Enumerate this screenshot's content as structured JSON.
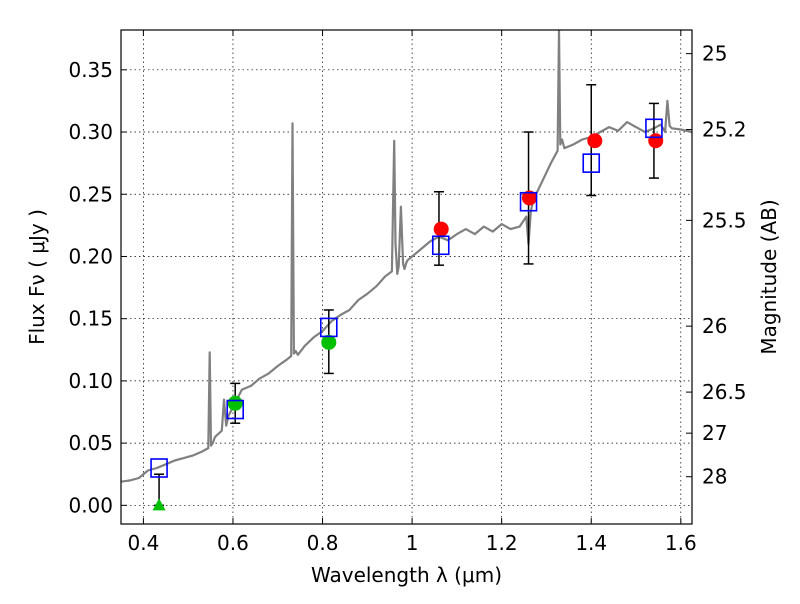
{
  "chart_data": {
    "type": "scatter",
    "xlabel": "Wavelength  λ (μm)",
    "ylabel": "Flux  Fν  ( μJy )",
    "y2label": "Magnitude (AB)",
    "xlim": [
      0.35,
      1.625
    ],
    "ylim": [
      -0.015,
      0.382
    ],
    "grid": true,
    "x_ticks": [
      0.4,
      0.6,
      0.8,
      1.0,
      1.2,
      1.4,
      1.6
    ],
    "x_tick_labels": [
      "0.4",
      "0.6",
      "0.8",
      "1",
      "1.2",
      "1.4",
      "1.6"
    ],
    "y_ticks": [
      0.0,
      0.05,
      0.1,
      0.15,
      0.2,
      0.25,
      0.3,
      0.35
    ],
    "y_tick_labels": [
      "0.00",
      "0.05",
      "0.10",
      "0.15",
      "0.20",
      "0.25",
      "0.30",
      "0.35"
    ],
    "mag_ticks": [
      {
        "label": "25",
        "flux": 0.363
      },
      {
        "label": "25.2",
        "flux": 0.302
      },
      {
        "label": "25.5",
        "flux": 0.229
      },
      {
        "label": "26",
        "flux": 0.144
      },
      {
        "label": "26.5",
        "flux": 0.091
      },
      {
        "label": "27",
        "flux": 0.058
      },
      {
        "label": "28",
        "flux": 0.023
      }
    ],
    "series": [
      {
        "type": "line",
        "color": "#808080",
        "x": [
          0.35,
          0.37,
          0.39,
          0.41,
          0.43,
          0.45,
          0.47,
          0.49,
          0.51,
          0.53,
          0.545,
          0.548,
          0.551,
          0.555,
          0.56,
          0.575,
          0.58,
          0.585,
          0.59,
          0.6,
          0.62,
          0.64,
          0.66,
          0.68,
          0.7,
          0.72,
          0.73,
          0.733,
          0.736,
          0.74,
          0.745,
          0.76,
          0.78,
          0.8,
          0.82,
          0.84,
          0.86,
          0.88,
          0.9,
          0.92,
          0.94,
          0.955,
          0.96,
          0.963,
          0.967,
          0.97,
          0.975,
          0.98,
          0.983,
          0.987,
          0.99,
          1.0,
          1.02,
          1.04,
          1.06,
          1.08,
          1.1,
          1.12,
          1.14,
          1.16,
          1.18,
          1.2,
          1.22,
          1.24,
          1.255,
          1.26,
          1.265,
          1.27,
          1.29,
          1.31,
          1.325,
          1.328,
          1.331,
          1.335,
          1.34,
          1.36,
          1.38,
          1.4,
          1.42,
          1.44,
          1.46,
          1.48,
          1.5,
          1.52,
          1.54,
          1.555,
          1.565,
          1.57,
          1.575,
          1.58,
          1.6,
          1.625
        ],
        "y": [
          0.019,
          0.02,
          0.022,
          0.028,
          0.03,
          0.033,
          0.036,
          0.038,
          0.04,
          0.043,
          0.046,
          0.123,
          0.048,
          0.05,
          0.055,
          0.06,
          0.085,
          0.064,
          0.072,
          0.079,
          0.093,
          0.096,
          0.102,
          0.106,
          0.112,
          0.117,
          0.12,
          0.307,
          0.122,
          0.124,
          0.121,
          0.128,
          0.135,
          0.14,
          0.148,
          0.153,
          0.157,
          0.165,
          0.17,
          0.176,
          0.184,
          0.188,
          0.293,
          0.21,
          0.186,
          0.192,
          0.24,
          0.194,
          0.19,
          0.195,
          0.197,
          0.2,
          0.206,
          0.212,
          0.216,
          0.213,
          0.218,
          0.222,
          0.218,
          0.224,
          0.22,
          0.226,
          0.222,
          0.224,
          0.232,
          0.21,
          0.236,
          0.245,
          0.26,
          0.275,
          0.285,
          0.382,
          0.29,
          0.294,
          0.287,
          0.29,
          0.294,
          0.296,
          0.3,
          0.304,
          0.301,
          0.308,
          0.304,
          0.3,
          0.303,
          0.306,
          0.3,
          0.325,
          0.305,
          0.303,
          0.302,
          0.3
        ]
      },
      {
        "type": "errorbar",
        "color": "#000000",
        "x": [
          0.435,
          0.605,
          0.814,
          1.06,
          1.26,
          1.4,
          1.54
        ],
        "low": [
          0.0,
          0.066,
          0.106,
          0.193,
          0.194,
          0.249,
          0.263
        ],
        "high": [
          0.025,
          0.098,
          0.157,
          0.252,
          0.3,
          0.338,
          0.323
        ]
      },
      {
        "type": "points",
        "marker": "circle",
        "color": "#00c000",
        "x": [
          0.605,
          0.814
        ],
        "y": [
          0.082,
          0.131
        ]
      },
      {
        "type": "points",
        "marker": "circle",
        "color": "#ff0000",
        "x": [
          1.065,
          1.262,
          1.408,
          1.544
        ],
        "y": [
          0.222,
          0.247,
          0.293,
          0.293
        ]
      },
      {
        "type": "points",
        "marker": "triangle",
        "color": "#00c000",
        "x": [
          0.435
        ],
        "y": [
          0.0
        ]
      },
      {
        "type": "points",
        "marker": "square",
        "color": "#0000ff",
        "x": [
          0.435,
          0.605,
          0.814,
          1.064,
          1.26,
          1.4,
          1.54
        ],
        "y": [
          0.03,
          0.077,
          0.143,
          0.209,
          0.244,
          0.275,
          0.303
        ]
      }
    ]
  }
}
